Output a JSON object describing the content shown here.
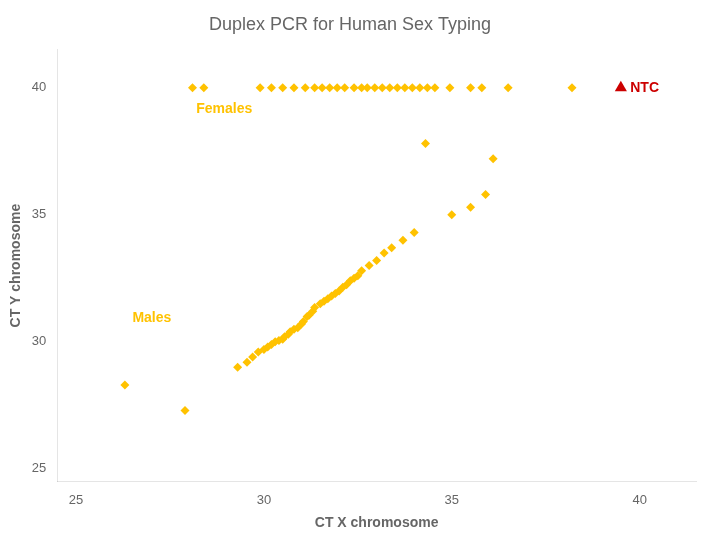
{
  "chart_data": {
    "type": "scatter",
    "title": "Duplex PCR for Human Sex Typing",
    "x_label": "CT X chromosome",
    "y_label": "CT Y chromosome",
    "xlim": [
      24.5,
      41.5
    ],
    "ylim": [
      24.5,
      41.5
    ],
    "xticks": [
      25,
      30,
      35,
      40
    ],
    "yticks": [
      25,
      30,
      35,
      40
    ],
    "grid": false,
    "series": [
      {
        "name": "Females",
        "color": "#FFC200",
        "marker": "diamond",
        "x": [
          28.1,
          28.4,
          29.9,
          30.2,
          30.5,
          30.8,
          31.1,
          31.35,
          31.55,
          31.75,
          31.95,
          32.15,
          32.4,
          32.6,
          32.75,
          32.95,
          33.15,
          33.35,
          33.55,
          33.75,
          33.95,
          34.15,
          34.35,
          34.55,
          34.95,
          35.5,
          35.8,
          36.5,
          38.2
        ],
        "y": [
          40.0,
          40.0,
          40.0,
          40.0,
          40.0,
          40.0,
          40.0,
          40.0,
          40.0,
          40.0,
          40.0,
          40.0,
          40.0,
          40.0,
          40.0,
          40.0,
          40.0,
          40.0,
          40.0,
          40.0,
          40.0,
          40.0,
          40.0,
          40.0,
          40.0,
          40.0,
          40.0,
          40.0,
          40.0
        ]
      },
      {
        "name": "Males",
        "color": "#FFC200",
        "marker": "diamond",
        "x": [
          26.3,
          27.9,
          29.3,
          29.55,
          29.7,
          29.85,
          30.0,
          30.1,
          30.2,
          30.3,
          30.4,
          30.5,
          30.55,
          30.65,
          30.7,
          30.8,
          30.9,
          31.0,
          31.05,
          31.15,
          31.2,
          31.3,
          31.35,
          31.5,
          31.6,
          31.7,
          31.8,
          31.9,
          32.0,
          32.1,
          32.2,
          32.3,
          32.4,
          32.5,
          32.6,
          32.8,
          33.0,
          33.2,
          33.4,
          33.7,
          34.0,
          34.3,
          35.0,
          35.5,
          35.9,
          36.1
        ],
        "y": [
          28.3,
          27.3,
          29.0,
          29.2,
          29.4,
          29.6,
          29.7,
          29.8,
          29.9,
          30.0,
          30.05,
          30.1,
          30.2,
          30.3,
          30.4,
          30.5,
          30.55,
          30.7,
          30.8,
          31.0,
          31.05,
          31.2,
          31.35,
          31.5,
          31.6,
          31.7,
          31.8,
          31.9,
          32.0,
          32.15,
          32.25,
          32.4,
          32.5,
          32.6,
          32.8,
          33.0,
          33.2,
          33.5,
          33.7,
          34.0,
          34.3,
          37.8,
          35.0,
          35.3,
          35.8,
          37.2
        ]
      },
      {
        "name": "NTC",
        "color": "#CC0000",
        "marker": "triangle",
        "x": [
          39.5
        ],
        "y": [
          40.0
        ]
      }
    ],
    "annotations": [
      {
        "text": "NTC",
        "x": 39.75,
        "y": 40.0,
        "color": "#CC0000"
      },
      {
        "text": "Females",
        "x": 28.2,
        "y": 39.0,
        "color": "#FFC200"
      },
      {
        "text": "Males",
        "x": 26.5,
        "y": 30.8,
        "color": "#FFC200"
      }
    ]
  }
}
